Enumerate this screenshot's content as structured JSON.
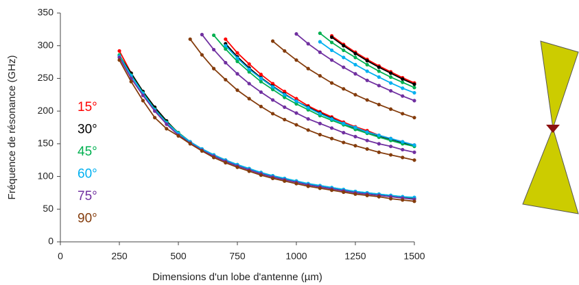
{
  "chart_data": {
    "type": "line",
    "x_label": "Dimensions d'un lobe d'antenne (µm)",
    "y_label": "Fréquence de résonance (GHz)",
    "xlim": [
      0,
      1500
    ],
    "xticks": [
      0,
      250,
      500,
      750,
      1000,
      1250,
      1500
    ],
    "ylim": [
      0,
      350
    ],
    "yticks": [
      0,
      50,
      100,
      150,
      200,
      250,
      300,
      350
    ],
    "grid": false,
    "x": [
      250,
      300,
      350,
      400,
      450,
      500,
      550,
      600,
      650,
      700,
      750,
      800,
      850,
      900,
      950,
      1000,
      1050,
      1100,
      1150,
      1200,
      1250,
      1300,
      1350,
      1400,
      1450,
      1500
    ],
    "series": [
      {
        "name": "15°",
        "color": "#ff0000",
        "values": [
          [
            292,
            258,
            229,
            205,
            184,
            167,
            153,
            142,
            133,
            125,
            118,
            111,
            106,
            101,
            96,
            92,
            88,
            85,
            82,
            79,
            76,
            74,
            72,
            70,
            68,
            66
          ],
          [
            null,
            null,
            null,
            null,
            null,
            null,
            null,
            null,
            null,
            310,
            289,
            272,
            256,
            242,
            230,
            219,
            208,
            199,
            191,
            183,
            176,
            170,
            163,
            158,
            153,
            148
          ],
          [
            null,
            null,
            null,
            null,
            null,
            null,
            null,
            null,
            null,
            null,
            null,
            null,
            null,
            null,
            null,
            null,
            null,
            null,
            315,
            302,
            290,
            279,
            269,
            260,
            251,
            243
          ]
        ]
      },
      {
        "name": "30°",
        "color": "#000000",
        "values": [
          [
            285,
            258,
            230,
            206,
            185,
            166,
            152,
            141,
            132,
            124,
            117,
            111,
            105,
            100,
            96,
            92,
            88,
            85,
            82,
            79,
            76,
            74,
            72,
            70,
            68,
            66
          ],
          [
            null,
            null,
            null,
            null,
            null,
            null,
            null,
            null,
            null,
            303,
            283,
            266,
            251,
            238,
            226,
            215,
            206,
            197,
            189,
            181,
            174,
            168,
            162,
            157,
            152,
            147
          ],
          [
            null,
            null,
            null,
            null,
            null,
            null,
            null,
            null,
            null,
            null,
            null,
            null,
            null,
            null,
            null,
            null,
            null,
            null,
            313,
            300,
            288,
            277,
            267,
            258,
            249,
            241
          ]
        ]
      },
      {
        "name": "45°",
        "color": "#00b050",
        "values": [
          [
            286,
            255,
            228,
            203,
            183,
            167,
            153,
            142,
            133,
            125,
            118,
            112,
            106,
            101,
            97,
            93,
            89,
            86,
            83,
            80,
            77,
            75,
            73,
            71,
            69,
            67
          ],
          [
            null,
            null,
            null,
            null,
            null,
            null,
            null,
            null,
            316,
            295,
            276,
            260,
            245,
            233,
            221,
            211,
            202,
            193,
            186,
            179,
            172,
            166,
            160,
            155,
            150,
            146
          ],
          [
            null,
            null,
            null,
            null,
            null,
            null,
            null,
            null,
            null,
            null,
            null,
            null,
            null,
            null,
            null,
            null,
            null,
            319,
            305,
            293,
            282,
            271,
            261,
            252,
            244,
            236
          ]
        ]
      },
      {
        "name": "60°",
        "color": "#00b0f0",
        "values": [
          [
            284,
            254,
            227,
            202,
            182,
            166,
            153,
            142,
            133,
            125,
            118,
            112,
            106,
            101,
            97,
            93,
            89,
            86,
            83,
            80,
            77,
            75,
            73,
            71,
            69,
            68
          ],
          [
            null,
            null,
            null,
            null,
            null,
            null,
            null,
            null,
            null,
            300,
            281,
            264,
            250,
            237,
            225,
            215,
            205,
            196,
            188,
            181,
            175,
            168,
            163,
            158,
            153,
            148
          ],
          [
            null,
            null,
            null,
            null,
            null,
            null,
            null,
            null,
            null,
            null,
            null,
            null,
            null,
            null,
            null,
            null,
            null,
            306,
            293,
            282,
            271,
            261,
            252,
            243,
            235,
            228
          ]
        ]
      },
      {
        "name": "75°",
        "color": "#7030a0",
        "values": [
          [
            282,
            250,
            224,
            200,
            180,
            163,
            151,
            140,
            131,
            123,
            116,
            110,
            104,
            99,
            95,
            91,
            87,
            84,
            81,
            78,
            75,
            73,
            71,
            69,
            67,
            65
          ],
          [
            null,
            null,
            null,
            null,
            null,
            null,
            null,
            317,
            294,
            274,
            257,
            242,
            229,
            217,
            206,
            197,
            188,
            181,
            174,
            167,
            161,
            155,
            150,
            146,
            141,
            137
          ],
          [
            null,
            null,
            null,
            null,
            null,
            null,
            null,
            null,
            null,
            null,
            null,
            null,
            null,
            null,
            null,
            318,
            303,
            290,
            278,
            267,
            257,
            247,
            239,
            231,
            223,
            216
          ]
        ]
      },
      {
        "name": "90°",
        "color": "#843c0c",
        "values": [
          [
            278,
            245,
            216,
            190,
            173,
            162,
            150,
            139,
            129,
            121,
            114,
            108,
            102,
            97,
            93,
            89,
            85,
            82,
            79,
            76,
            73,
            71,
            69,
            66,
            64,
            62
          ],
          [
            null,
            null,
            null,
            null,
            null,
            null,
            310,
            286,
            265,
            248,
            232,
            219,
            207,
            196,
            187,
            179,
            171,
            164,
            158,
            152,
            147,
            142,
            137,
            133,
            129,
            125
          ],
          [
            null,
            null,
            null,
            null,
            null,
            null,
            null,
            null,
            null,
            null,
            null,
            null,
            null,
            307,
            292,
            278,
            265,
            254,
            243,
            234,
            225,
            217,
            210,
            203,
            196,
            190
          ]
        ]
      }
    ]
  }
}
